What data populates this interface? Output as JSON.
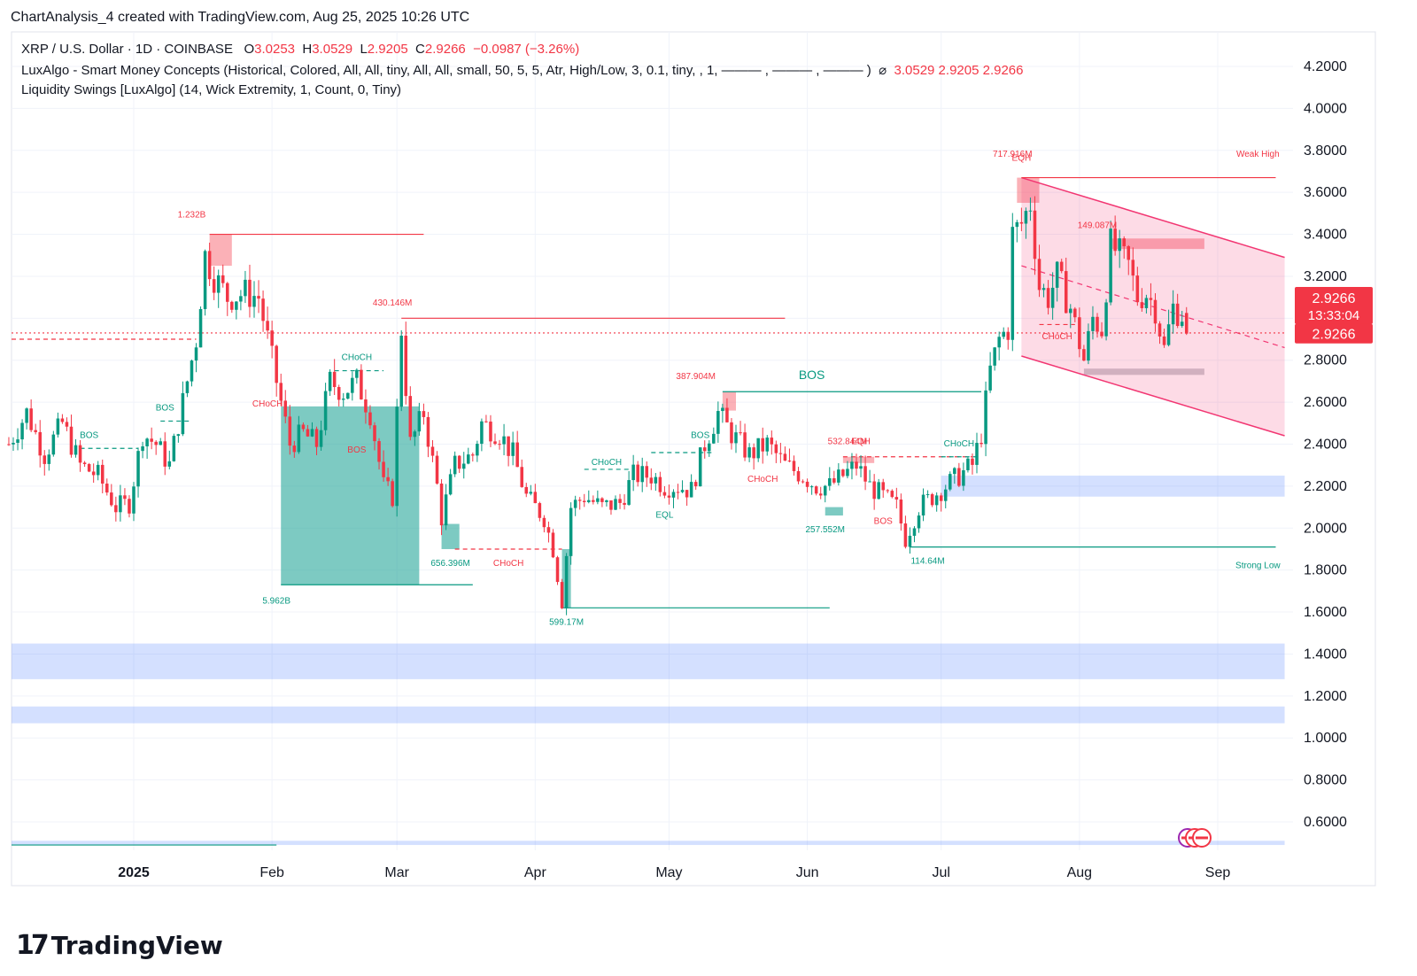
{
  "header": {
    "credit": "ChartAnalysis_4 created with TradingView.com, Aug 25, 2025 10:26 UTC"
  },
  "legend": {
    "symbol": "XRP / U.S. Dollar · 1D · COINBASE",
    "o_label": "O",
    "o": "3.0253",
    "h_label": "H",
    "h": "3.0529",
    "l_label": "L",
    "l": "2.9205",
    "c_label": "C",
    "c": "2.9266",
    "change": "−0.0987 (−3.26%)",
    "indicator1": "LuxAlgo - Smart Money Concepts (Historical, Colored, All, All, tiny, All, All, small, 50, 5, 5, Atr, High/Low, 3, 0.1, tiny, , 1, ——— , ——— , ——— )",
    "indicator1_vals": "3.0529  2.9205  2.9266",
    "indicator2": "Liquidity Swings [LuxAlgo] (14, Wick Extremity, 1, Count, 0, Tiny)"
  },
  "price_tags": {
    "last": "2.9266",
    "countdown": "13:33:04",
    "last2": "2.9266"
  },
  "brand": {
    "logo": "17",
    "name": "TradingView"
  },
  "colors": {
    "up": "#089981",
    "down": "#f23645",
    "bull_zone": "#26a69a",
    "bear_zone": "#f7525f",
    "channel": "#f23672",
    "demand": "#2962ff"
  },
  "chart_data": {
    "type": "candlestick",
    "y_ticks": [
      "4.2000",
      "4.0000",
      "3.8000",
      "3.6000",
      "3.4000",
      "3.2000",
      "3.0000",
      "2.8000",
      "2.6000",
      "2.4000",
      "2.2000",
      "2.0000",
      "1.8000",
      "1.6000",
      "1.4000",
      "1.2000",
      "1.0000",
      "0.8000",
      "0.6000"
    ],
    "y_range": [
      0.5,
      4.35
    ],
    "x_ticks": [
      {
        "label": "2025",
        "bold": true,
        "date": "2025-01-01"
      },
      {
        "label": "Feb",
        "date": "2025-02-01"
      },
      {
        "label": "Mar",
        "date": "2025-03-01"
      },
      {
        "label": "Apr",
        "date": "2025-04-01"
      },
      {
        "label": "May",
        "date": "2025-05-01"
      },
      {
        "label": "Jun",
        "date": "2025-06-01"
      },
      {
        "label": "Jul",
        "date": "2025-07-01"
      },
      {
        "label": "Aug",
        "date": "2025-08-01"
      },
      {
        "label": "Sep",
        "date": "2025-09-01"
      }
    ],
    "price_path": [
      [
        "2024-12-04",
        2.4
      ],
      [
        "2024-12-08",
        2.55
      ],
      [
        "2024-12-12",
        2.35
      ],
      [
        "2024-12-16",
        2.5
      ],
      [
        "2024-12-20",
        2.3
      ],
      [
        "2024-12-24",
        2.25
      ],
      [
        "2024-12-28",
        2.1
      ],
      [
        "2024-12-31",
        2.12
      ],
      [
        "2025-01-03",
        2.45
      ],
      [
        "2025-01-06",
        2.4
      ],
      [
        "2025-01-09",
        2.3
      ],
      [
        "2025-01-12",
        2.6
      ],
      [
        "2025-01-15",
        2.9
      ],
      [
        "2025-01-17",
        3.3
      ],
      [
        "2025-01-19",
        3.2
      ],
      [
        "2025-01-22",
        3.1
      ],
      [
        "2025-01-26",
        3.12
      ],
      [
        "2025-01-29",
        3.1
      ],
      [
        "2025-02-01",
        2.8
      ],
      [
        "2025-02-03",
        2.6
      ],
      [
        "2025-02-05",
        2.4
      ],
      [
        "2025-02-08",
        2.45
      ],
      [
        "2025-02-11",
        2.4
      ],
      [
        "2025-02-14",
        2.7
      ],
      [
        "2025-02-17",
        2.65
      ],
      [
        "2025-02-20",
        2.7
      ],
      [
        "2025-02-23",
        2.55
      ],
      [
        "2025-02-26",
        2.2
      ],
      [
        "2025-02-28",
        2.15
      ],
      [
        "2025-03-02",
        2.95
      ],
      [
        "2025-03-04",
        2.4
      ],
      [
        "2025-03-07",
        2.55
      ],
      [
        "2025-03-10",
        2.2
      ],
      [
        "2025-03-11",
        2.05
      ],
      [
        "2025-03-14",
        2.3
      ],
      [
        "2025-03-18",
        2.35
      ],
      [
        "2025-03-20",
        2.5
      ],
      [
        "2025-03-24",
        2.45
      ],
      [
        "2025-03-27",
        2.35
      ],
      [
        "2025-03-30",
        2.15
      ],
      [
        "2025-04-03",
        2.05
      ],
      [
        "2025-04-05",
        1.9
      ],
      [
        "2025-04-07",
        1.65
      ],
      [
        "2025-04-09",
        2.1
      ],
      [
        "2025-04-12",
        2.15
      ],
      [
        "2025-04-16",
        2.1
      ],
      [
        "2025-04-20",
        2.12
      ],
      [
        "2025-04-23",
        2.25
      ],
      [
        "2025-04-27",
        2.25
      ],
      [
        "2025-04-30",
        2.2
      ],
      [
        "2025-05-03",
        2.2
      ],
      [
        "2025-05-06",
        2.18
      ],
      [
        "2025-05-09",
        2.4
      ],
      [
        "2025-05-12",
        2.55
      ],
      [
        "2025-05-15",
        2.45
      ],
      [
        "2025-05-19",
        2.35
      ],
      [
        "2025-05-23",
        2.4
      ],
      [
        "2025-05-27",
        2.3
      ],
      [
        "2025-05-31",
        2.25
      ],
      [
        "2025-06-03",
        2.2
      ],
      [
        "2025-06-06",
        2.2
      ],
      [
        "2025-06-09",
        2.25
      ],
      [
        "2025-06-12",
        2.3
      ],
      [
        "2025-06-15",
        2.2
      ],
      [
        "2025-06-18",
        2.15
      ],
      [
        "2025-06-21",
        2.1
      ],
      [
        "2025-06-23",
        1.95
      ],
      [
        "2025-06-26",
        2.1
      ],
      [
        "2025-06-29",
        2.15
      ],
      [
        "2025-07-02",
        2.2
      ],
      [
        "2025-07-05",
        2.25
      ],
      [
        "2025-07-08",
        2.3
      ],
      [
        "2025-07-10",
        2.45
      ],
      [
        "2025-07-12",
        2.75
      ],
      [
        "2025-07-14",
        2.9
      ],
      [
        "2025-07-16",
        2.95
      ],
      [
        "2025-07-17",
        3.4
      ],
      [
        "2025-07-19",
        3.45
      ],
      [
        "2025-07-21",
        3.55
      ],
      [
        "2025-07-23",
        3.15
      ],
      [
        "2025-07-25",
        3.1
      ],
      [
        "2025-07-27",
        3.2
      ],
      [
        "2025-07-30",
        3.05
      ],
      [
        "2025-08-02",
        2.8
      ],
      [
        "2025-08-04",
        3.0
      ],
      [
        "2025-08-06",
        2.95
      ],
      [
        "2025-08-08",
        3.35
      ],
      [
        "2025-08-10",
        3.3
      ],
      [
        "2025-08-12",
        3.25
      ],
      [
        "2025-08-14",
        3.1
      ],
      [
        "2025-08-16",
        3.12
      ],
      [
        "2025-08-18",
        3.05
      ],
      [
        "2025-08-20",
        2.85
      ],
      [
        "2025-08-22",
        3.05
      ],
      [
        "2025-08-24",
        3.02
      ],
      [
        "2025-08-25",
        2.93
      ]
    ],
    "last_candle": {
      "date": "2025-08-25",
      "o": 3.0253,
      "h": 3.0529,
      "l": 2.9205,
      "c": 2.9266
    },
    "zones": [
      {
        "kind": "bull-ob",
        "x0": "2025-02-03",
        "x1": "2025-03-06",
        "y0": 1.73,
        "y1": 2.58
      },
      {
        "kind": "bull-ob",
        "x0": "2025-03-11",
        "x1": "2025-03-15",
        "y0": 1.9,
        "y1": 2.02
      },
      {
        "kind": "bull-ob",
        "x0": "2025-04-07",
        "x1": "2025-04-09",
        "y0": 1.62,
        "y1": 1.9
      },
      {
        "kind": "bull-ob",
        "x0": "2025-06-05",
        "x1": "2025-06-09",
        "y0": 2.06,
        "y1": 2.1
      },
      {
        "kind": "bear-ob",
        "x0": "2025-01-18",
        "x1": "2025-01-23",
        "y0": 3.25,
        "y1": 3.4
      },
      {
        "kind": "bear-ob",
        "x0": "2025-05-13",
        "x1": "2025-05-16",
        "y0": 2.56,
        "y1": 2.65
      },
      {
        "kind": "bear-ob",
        "x0": "2025-06-09",
        "x1": "2025-06-16",
        "y0": 2.31,
        "y1": 2.34
      },
      {
        "kind": "bear-ob",
        "x0": "2025-07-18",
        "x1": "2025-07-23",
        "y0": 3.55,
        "y1": 3.67
      },
      {
        "kind": "bear-ob",
        "x0": "2025-08-08",
        "x1": "2025-08-29",
        "y0": 3.33,
        "y1": 3.38
      },
      {
        "kind": "grey",
        "x0": "2025-08-02",
        "x1": "2025-08-29",
        "y0": 2.73,
        "y1": 2.76
      },
      {
        "kind": "demand",
        "x0": "2025-07-01",
        "x1": "2025-09-16",
        "y0": 2.15,
        "y1": 2.25
      },
      {
        "kind": "demand",
        "x0": "2024-12-01",
        "x1": "2025-09-16",
        "y0": 1.28,
        "y1": 1.45
      },
      {
        "kind": "demand",
        "x0": "2024-12-01",
        "x1": "2025-09-16",
        "y0": 1.07,
        "y1": 1.15
      },
      {
        "kind": "demand",
        "x0": "2024-12-01",
        "x1": "2025-09-16",
        "y0": 0.49,
        "y1": 0.51
      }
    ],
    "channel": {
      "upper": [
        [
          "2025-07-19",
          3.67
        ],
        [
          "2025-09-16",
          3.29
        ]
      ],
      "lower": [
        [
          "2025-07-19",
          2.82
        ],
        [
          "2025-09-16",
          2.44
        ]
      ],
      "mid": [
        [
          "2025-07-19",
          3.25
        ],
        [
          "2025-09-16",
          2.86
        ]
      ]
    },
    "levels": [
      {
        "kind": "red",
        "date0": "2025-01-18",
        "date1": "2025-03-07",
        "y": 3.4
      },
      {
        "kind": "red",
        "date0": "2025-03-02",
        "date1": "2025-05-27",
        "y": 3.0
      },
      {
        "kind": "red",
        "date0": "2025-07-19",
        "date1": "2025-09-14",
        "y": 3.67
      },
      {
        "kind": "green",
        "date0": "2025-05-13",
        "date1": "2025-07-10",
        "y": 2.65
      },
      {
        "kind": "green",
        "date0": "2025-02-03",
        "date1": "2025-03-18",
        "y": 1.73
      },
      {
        "kind": "green",
        "date0": "2025-04-07",
        "date1": "2025-06-06",
        "y": 1.62
      },
      {
        "kind": "green",
        "date0": "2025-06-24",
        "date1": "2025-09-14",
        "y": 1.91
      },
      {
        "kind": "green",
        "date0": "2024-12-01",
        "date1": "2025-02-02",
        "y": 0.49
      },
      {
        "kind": "red-dash",
        "date0": "2024-12-01",
        "date1": "2025-01-15",
        "y": 2.9
      },
      {
        "kind": "red-dash",
        "date0": "2025-03-14",
        "date1": "2025-04-07",
        "y": 1.9
      },
      {
        "kind": "red-dash",
        "date0": "2025-06-09",
        "date1": "2025-07-08",
        "y": 2.34
      },
      {
        "kind": "red-dash",
        "date0": "2025-07-23",
        "date1": "2025-07-31",
        "y": 2.97
      },
      {
        "kind": "green-dash",
        "date0": "2024-12-20",
        "date1": "2025-01-02",
        "y": 2.38
      },
      {
        "kind": "green-dash",
        "date0": "2025-01-07",
        "date1": "2025-01-14",
        "y": 2.51
      },
      {
        "kind": "green-dash",
        "date0": "2025-02-15",
        "date1": "2025-02-26",
        "y": 2.75
      },
      {
        "kind": "green-dash",
        "date0": "2025-04-12",
        "date1": "2025-04-22",
        "y": 2.28
      },
      {
        "kind": "green-dash",
        "date0": "2025-04-27",
        "date1": "2025-05-11",
        "y": 2.36
      },
      {
        "kind": "green-dash",
        "date0": "2025-07-01",
        "date1": "2025-07-09",
        "y": 2.34
      },
      {
        "kind": "dotted",
        "date0": "2024-12-01",
        "date1": "2025-09-16",
        "y": 2.93
      }
    ],
    "annotations": [
      {
        "text": "BOS",
        "date": "2024-12-22",
        "y": 2.43,
        "color": "green"
      },
      {
        "text": "BOS",
        "date": "2025-01-08",
        "y": 2.56,
        "color": "green"
      },
      {
        "text": "1.232B",
        "date": "2025-01-14",
        "y": 3.48,
        "color": "red"
      },
      {
        "text": "CHoCH",
        "date": "2025-01-31",
        "y": 2.58,
        "color": "red"
      },
      {
        "text": "CHoCH",
        "date": "2025-02-20",
        "y": 2.8,
        "color": "green"
      },
      {
        "text": "BOS",
        "date": "2025-02-20",
        "y": 2.36,
        "color": "red"
      },
      {
        "text": "430.146M",
        "date": "2025-02-28",
        "y": 3.06,
        "color": "red"
      },
      {
        "text": "5.962B",
        "date": "2025-02-02",
        "y": 1.64,
        "color": "green"
      },
      {
        "text": "656.396M",
        "date": "2025-03-13",
        "y": 1.82,
        "color": "green"
      },
      {
        "text": "CHoCH",
        "date": "2025-03-26",
        "y": 1.82,
        "color": "red"
      },
      {
        "text": "599.17M",
        "date": "2025-04-08",
        "y": 1.54,
        "color": "green"
      },
      {
        "text": "CHoCH",
        "date": "2025-04-17",
        "y": 2.3,
        "color": "green"
      },
      {
        "text": "EQL",
        "date": "2025-04-30",
        "y": 2.05,
        "color": "green"
      },
      {
        "text": "BOS",
        "date": "2025-05-08",
        "y": 2.43,
        "color": "green"
      },
      {
        "text": "387.904M",
        "date": "2025-05-07",
        "y": 2.71,
        "color": "red"
      },
      {
        "text": "BOS",
        "date": "2025-06-02",
        "y": 2.71,
        "color": "green",
        "big": true
      },
      {
        "text": "CHoCH",
        "date": "2025-05-22",
        "y": 2.22,
        "color": "red"
      },
      {
        "text": "532.844M",
        "date": "2025-06-10",
        "y": 2.4,
        "color": "red"
      },
      {
        "text": "EQH",
        "date": "2025-06-13",
        "y": 2.4,
        "color": "red"
      },
      {
        "text": "257.552M",
        "date": "2025-06-05",
        "y": 1.98,
        "color": "green"
      },
      {
        "text": "BOS",
        "date": "2025-06-18",
        "y": 2.02,
        "color": "red"
      },
      {
        "text": "114.64M",
        "date": "2025-06-28",
        "y": 1.83,
        "color": "green"
      },
      {
        "text": "CHoCH",
        "date": "2025-07-05",
        "y": 2.39,
        "color": "green"
      },
      {
        "text": "717.916M",
        "date": "2025-07-17",
        "y": 3.77,
        "color": "red"
      },
      {
        "text": "EQH",
        "date": "2025-07-19",
        "y": 3.75,
        "color": "red"
      },
      {
        "text": "149.087M",
        "date": "2025-08-05",
        "y": 3.43,
        "color": "red"
      },
      {
        "text": "CHoCH",
        "date": "2025-07-27",
        "y": 2.9,
        "color": "red"
      },
      {
        "text": "Weak High",
        "date": "2025-09-10",
        "y": 3.77,
        "color": "red"
      },
      {
        "text": "Strong Low",
        "date": "2025-09-10",
        "y": 1.81,
        "color": "green"
      }
    ]
  }
}
